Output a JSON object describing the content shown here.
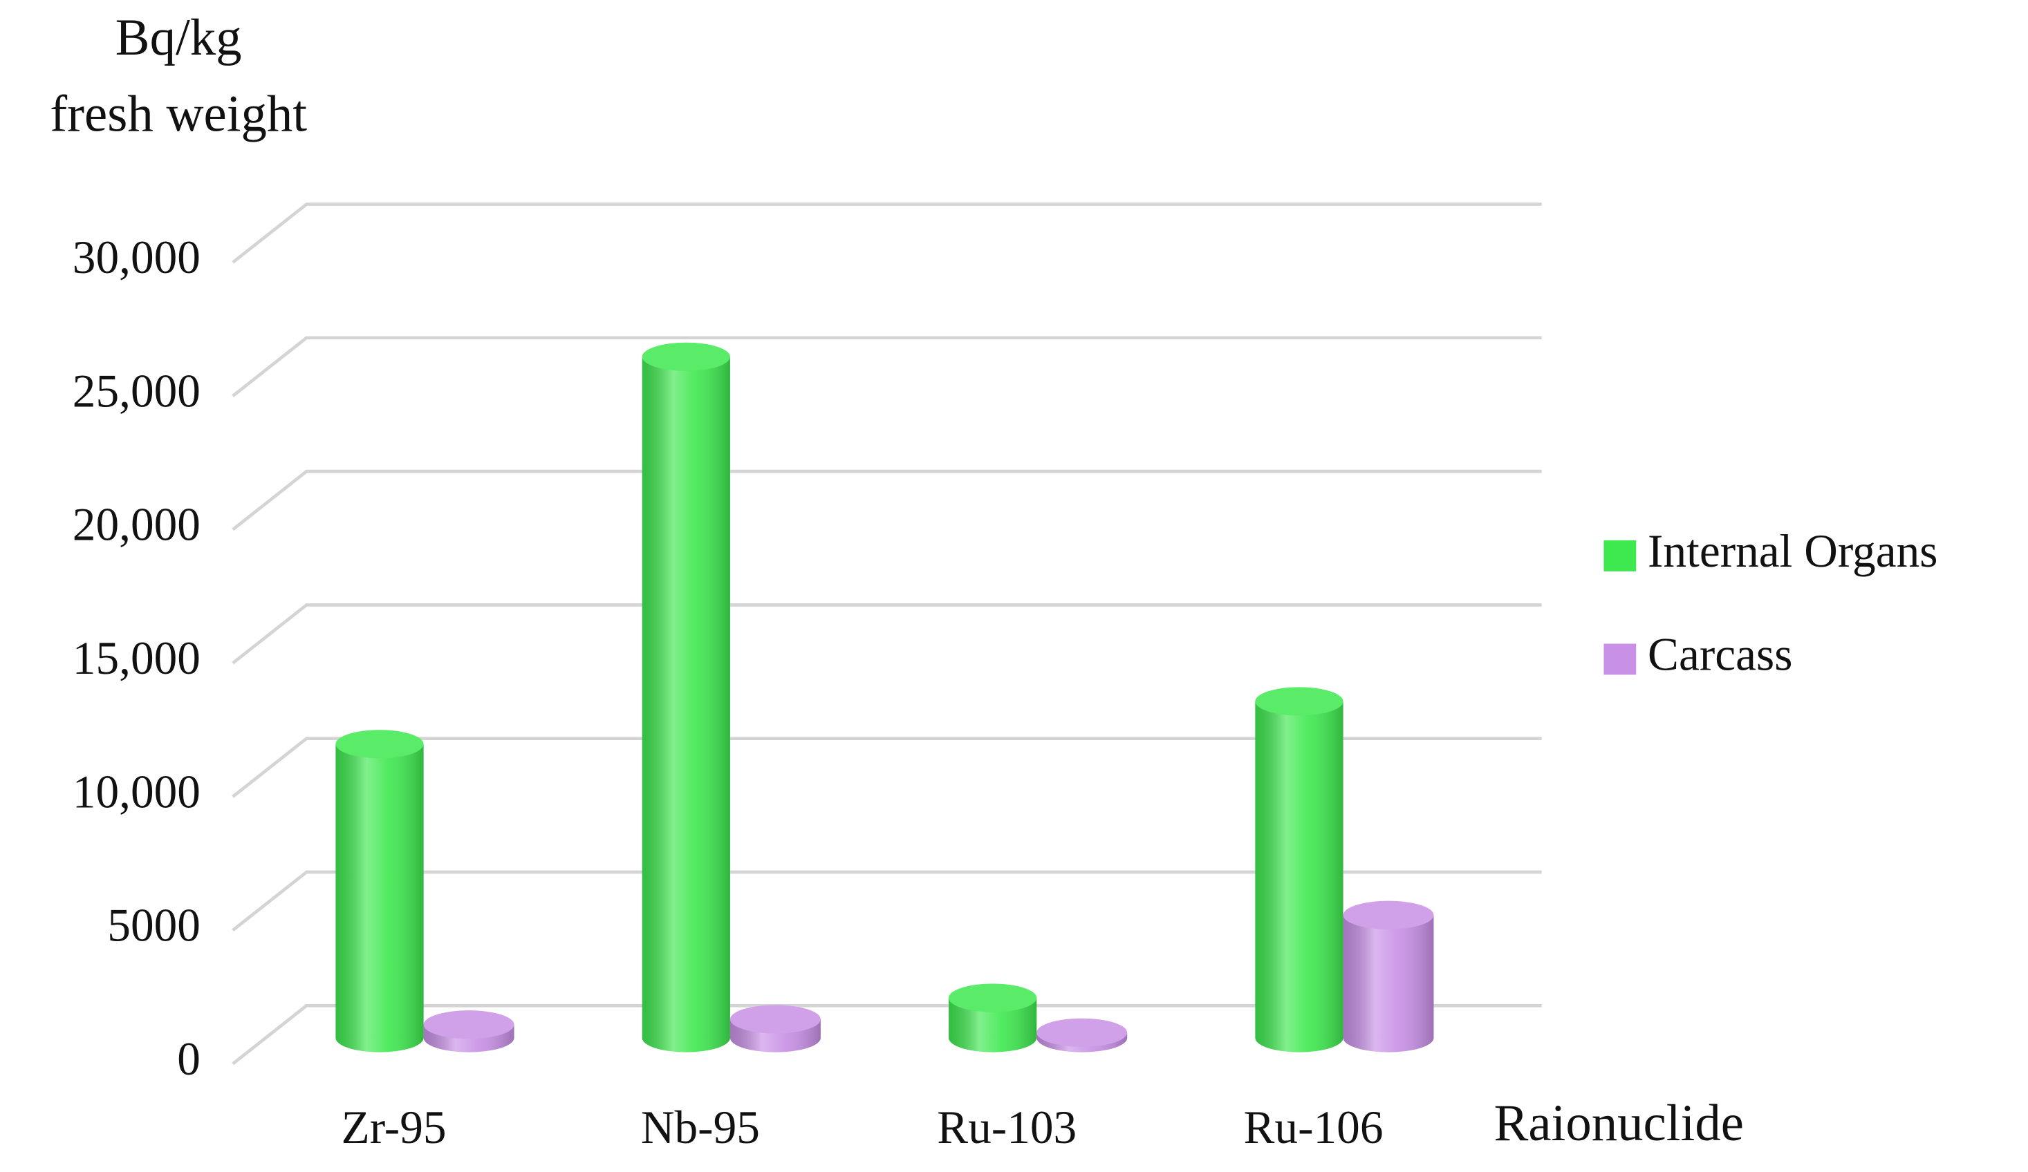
{
  "chart_data": {
    "type": "bar3d",
    "ylabel": [
      "Bq/kg",
      "fresh weight"
    ],
    "xlabel": "Raionuclide",
    "categories": [
      "Zr-95",
      "Nb-95",
      "Ru-103",
      "Ru-106"
    ],
    "series": [
      {
        "name": "Internal Organs",
        "color": "#3ee84f",
        "values": [
          11000,
          25500,
          1500,
          12600
        ]
      },
      {
        "name": "Carcass",
        "color": "#c890e6",
        "values": [
          500,
          700,
          200,
          4600
        ]
      }
    ],
    "ylim": [
      0,
      30000
    ],
    "yticks": [
      0,
      5000,
      {
        "value": 10000,
        "label": "10,000"
      },
      {
        "value": 15000,
        "label": "15,000"
      },
      {
        "value": 20000,
        "label": "20,000"
      },
      {
        "value": 25000,
        "label": "25,000"
      },
      {
        "value": 30000,
        "label": "30,000"
      }
    ],
    "grid": true,
    "legend": "right"
  }
}
